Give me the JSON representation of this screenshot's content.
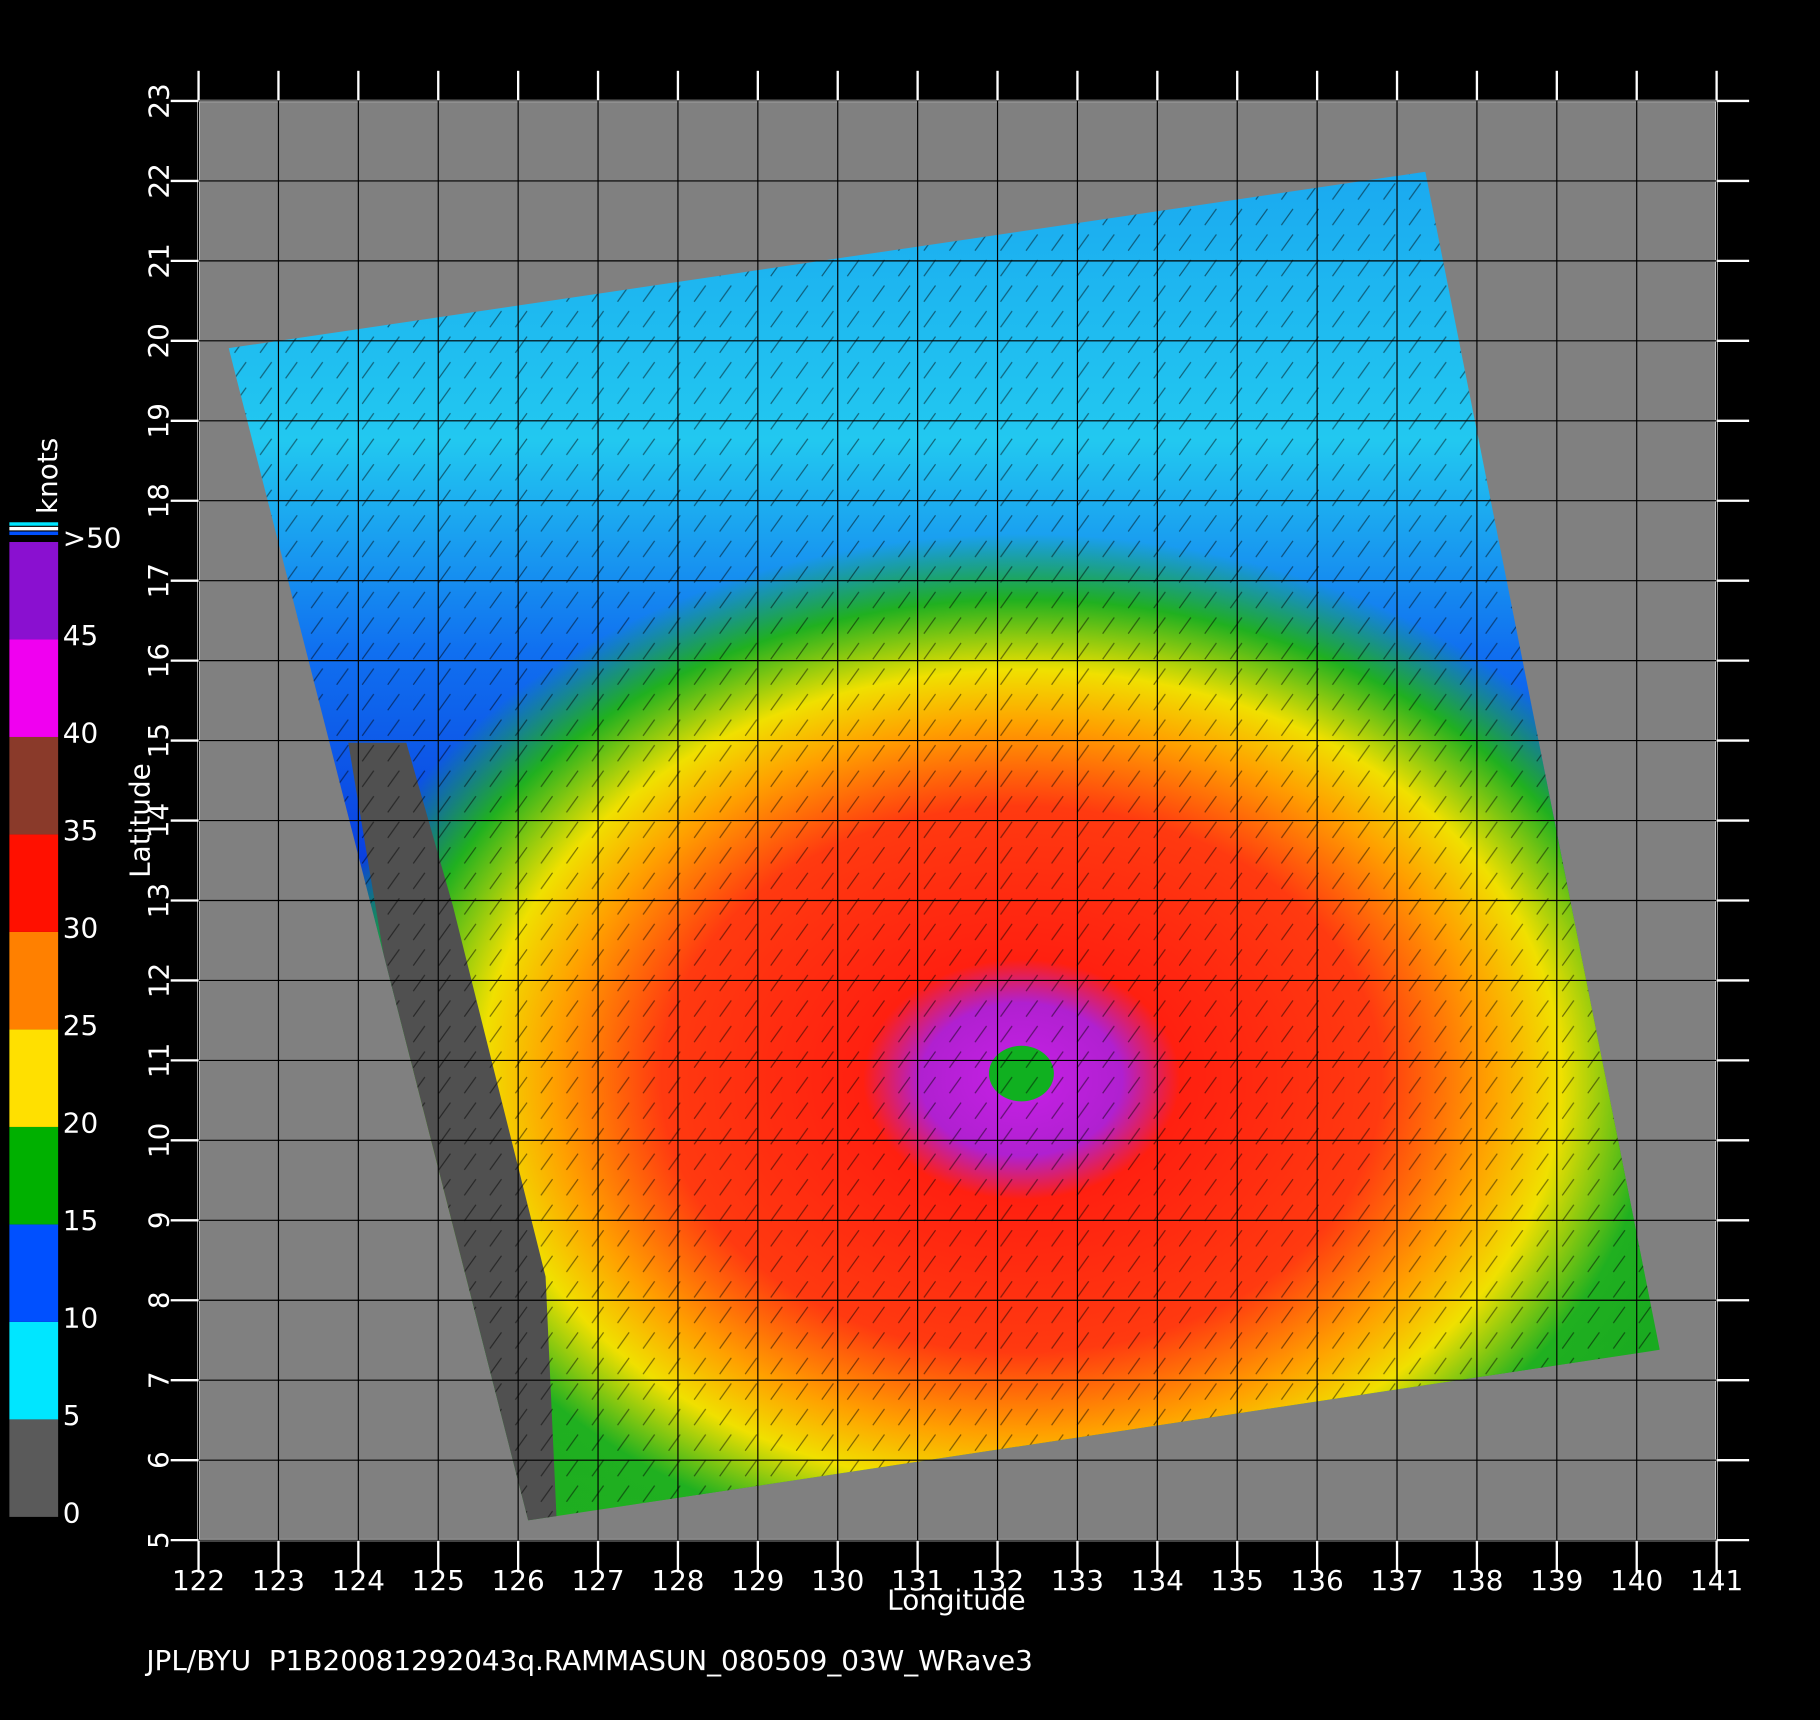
{
  "map": {
    "xlabel": "Longitude",
    "ylabel": "Latitude",
    "xlim": [
      122,
      141
    ],
    "ylim": [
      5,
      23
    ],
    "xticks": [
      122,
      123,
      124,
      125,
      126,
      127,
      128,
      129,
      130,
      131,
      132,
      133,
      134,
      135,
      136,
      137,
      138,
      139,
      140,
      141
    ],
    "yticks": [
      5,
      6,
      7,
      8,
      9,
      10,
      11,
      12,
      13,
      14,
      15,
      16,
      17,
      18,
      19,
      20,
      21,
      22,
      23
    ],
    "grid": true
  },
  "colorbar": {
    "title": "knots",
    "lim": [
      0,
      50
    ],
    "ticks": [
      0,
      5,
      10,
      15,
      20,
      25,
      30,
      35,
      40,
      45,
      {
        "value": 50,
        "label": ">50"
      }
    ],
    "colors": [
      "#5a5a5a",
      "#00e6ff",
      "#0050ff",
      "#00b000",
      "#ffe000",
      "#ff8000",
      "#ff1000",
      "#8a3a2a",
      "#f000f0",
      "#8a10d0"
    ]
  },
  "footer": "JPL/BYU  P1B20081292043q.RAMMASUN_080509_03W_WRave3"
}
